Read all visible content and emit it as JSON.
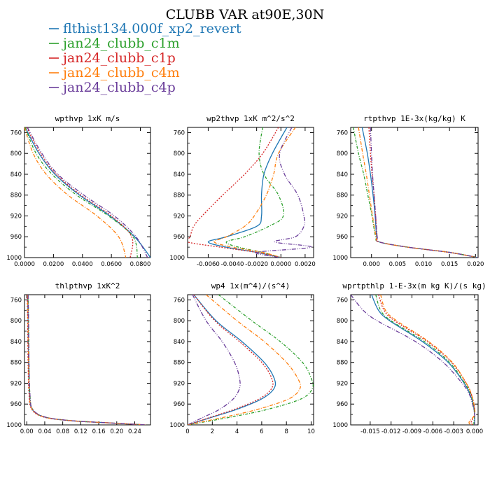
{
  "title": "CLUBB VAR at90E,30N",
  "legend": [
    {
      "name": "flthist134.000f_xp2_revert",
      "color": "#1f77b4"
    },
    {
      "name": "jan24_clubb_c1m",
      "color": "#2ca02c"
    },
    {
      "name": "jan24_clubb_c1p",
      "color": "#d62728"
    },
    {
      "name": "jan24_clubb_c4m",
      "color": "#ff7f0e"
    },
    {
      "name": "jan24_clubb_c4p",
      "color": "#6a3d9a"
    }
  ],
  "chart_data": [
    {
      "type": "line",
      "title": "wpthvp  1xK m/s",
      "xlim": [
        0,
        0.087
      ],
      "ylim": [
        750,
        1000
      ],
      "y_inverted": true,
      "xticks": [
        "0.0000",
        "0.0200",
        "0.0400",
        "0.0600",
        "0.0800"
      ],
      "xtick_values": [
        0,
        0.02,
        0.04,
        0.06,
        0.08
      ],
      "yticks": [
        "760",
        "800",
        "840",
        "880",
        "920",
        "960",
        "1000"
      ],
      "y": [
        750,
        800,
        840,
        880,
        920,
        960,
        1000
      ],
      "series": [
        {
          "values": [
            0.0005,
            0.01,
            0.021,
            0.038,
            0.059,
            0.076,
            0.087
          ]
        },
        {
          "values": [
            0.0005,
            0.008,
            0.019,
            0.036,
            0.058,
            0.075,
            0.078
          ]
        },
        {
          "values": [
            0.0015,
            0.011,
            0.022,
            0.039,
            0.06,
            0.074,
            0.073
          ]
        },
        {
          "values": [
            0,
            0.006,
            0.015,
            0.03,
            0.05,
            0.065,
            0.07
          ]
        },
        {
          "values": [
            0.002,
            0.012,
            0.023,
            0.041,
            0.062,
            0.077,
            0.085
          ]
        }
      ]
    },
    {
      "type": "line",
      "title": "wp2thvp  1xK m^2/s^2",
      "xlim": [
        -0.0077,
        0.0027
      ],
      "ylim": [
        750,
        1000
      ],
      "y_inverted": true,
      "xticks": [
        "-0.0060",
        "-0.0040",
        "-0.0020",
        "0.0000",
        "0.0020"
      ],
      "xtick_values": [
        -0.006,
        -0.004,
        -0.002,
        0,
        0.002
      ],
      "yticks": [
        "760",
        "800",
        "840",
        "880",
        "920",
        "960",
        "1000"
      ],
      "y": [
        750,
        800,
        840,
        880,
        920,
        940,
        960,
        970,
        980,
        990,
        1000
      ],
      "series": [
        {
          "values": [
            0.0005,
            -0.0007,
            -0.0014,
            -0.0016,
            -0.0016,
            -0.002,
            -0.0045,
            -0.006,
            -0.0045,
            -0.002,
            0
          ]
        },
        {
          "values": [
            -0.0015,
            -0.0018,
            -0.0014,
            -0.0002,
            0.0002,
            -0.001,
            -0.003,
            -0.0045,
            -0.0035,
            -0.0015,
            0
          ]
        },
        {
          "values": [
            -0.0002,
            -0.0015,
            -0.003,
            -0.0048,
            -0.0065,
            -0.0072,
            -0.0075,
            -0.0077,
            -0.005,
            -0.002,
            0
          ]
        },
        {
          "values": [
            0.0012,
            -0.0002,
            -0.0006,
            -0.0012,
            -0.0022,
            -0.003,
            -0.0045,
            -0.0055,
            -0.004,
            -0.0015,
            0
          ]
        },
        {
          "values": [
            0.0009,
            -0.0001,
            0.0003,
            0.0014,
            0.0019,
            0.0019,
            0.0012,
            -0.0005,
            0.0025,
            -0.002,
            0
          ]
        }
      ]
    },
    {
      "type": "line",
      "title": "rtpthvp  1E-3x(kg/kg) K",
      "xlim": [
        -0.004,
        0.0205
      ],
      "ylim": [
        750,
        1000
      ],
      "y_inverted": true,
      "xticks": [
        "0.000",
        "0.005",
        "0.010",
        "0.015",
        "0.020"
      ],
      "xtick_values": [
        0,
        0.005,
        0.01,
        0.015,
        0.02
      ],
      "yticks": [
        "760",
        "800",
        "840",
        "880",
        "920",
        "960",
        "1000"
      ],
      "y": [
        750,
        800,
        840,
        880,
        920,
        960,
        970,
        980,
        990,
        1000
      ],
      "series": [
        {
          "values": [
            -0.0018,
            -0.0008,
            -0.0002,
            0.0003,
            0.0007,
            0.001,
            0.0015,
            0.007,
            0.015,
            0.0205
          ]
        },
        {
          "values": [
            -0.0035,
            -0.0025,
            -0.0015,
            -0.0007,
            0.0001,
            0.0008,
            0.0015,
            0.007,
            0.015,
            0.0205
          ]
        },
        {
          "values": [
            -0.0005,
            -0.0002,
            0.0001,
            0.0005,
            0.0008,
            0.0011,
            0.0015,
            0.007,
            0.015,
            0.0205
          ]
        },
        {
          "values": [
            -0.0025,
            -0.0017,
            -0.001,
            -0.0004,
            0.0002,
            0.0009,
            0.0015,
            0.007,
            0.015,
            0.0205
          ]
        },
        {
          "values": [
            -0.0002,
            0,
            0.0002,
            0.0005,
            0.0008,
            0.0011,
            0.0015,
            0.007,
            0.015,
            0.0205
          ]
        }
      ]
    },
    {
      "type": "line",
      "title": "thlpthvp  1xK^2",
      "xlim": [
        -0.005,
        0.275
      ],
      "ylim": [
        750,
        1000
      ],
      "y_inverted": true,
      "xticks": [
        "0.00",
        "0.04",
        "0.08",
        "0.12",
        "0.16",
        "0.20",
        "0.24"
      ],
      "xtick_values": [
        0,
        0.04,
        0.08,
        0.12,
        0.16,
        0.2,
        0.24
      ],
      "yticks": [
        "760",
        "800",
        "840",
        "880",
        "920",
        "960",
        "1000"
      ],
      "y": [
        750,
        800,
        880,
        940,
        970,
        985,
        992,
        996,
        1000
      ],
      "series": [
        {
          "values": [
            0.002,
            0.003,
            0.004,
            0.006,
            0.012,
            0.04,
            0.1,
            0.18,
            0.265
          ]
        },
        {
          "values": [
            0.003,
            0.004,
            0.005,
            0.007,
            0.013,
            0.04,
            0.1,
            0.18,
            0.265
          ]
        },
        {
          "values": [
            0.001,
            0.002,
            0.003,
            0.005,
            0.011,
            0.038,
            0.1,
            0.18,
            0.265
          ]
        },
        {
          "values": [
            0.002,
            0.003,
            0.004,
            0.006,
            0.012,
            0.04,
            0.1,
            0.18,
            0.265
          ]
        },
        {
          "values": [
            0.003,
            0.004,
            0.005,
            0.007,
            0.013,
            0.042,
            0.1,
            0.18,
            0.265
          ]
        }
      ]
    },
    {
      "type": "line",
      "title": "wp4  1x(m^4)/(s^4)",
      "xlim": [
        0,
        10.2
      ],
      "ylim": [
        750,
        1000
      ],
      "y_inverted": true,
      "xticks": [
        "0",
        "2",
        "4",
        "6",
        "8",
        "10"
      ],
      "xtick_values": [
        0,
        2,
        4,
        6,
        8,
        10
      ],
      "yticks": [
        "760",
        "800",
        "840",
        "880",
        "920",
        "960",
        "1000"
      ],
      "y": [
        750,
        800,
        840,
        880,
        910,
        930,
        950,
        970,
        985,
        1000
      ],
      "series": [
        {
          "values": [
            0.5,
            2.3,
            4.4,
            6.2,
            7.0,
            7.0,
            6.0,
            4.0,
            2.0,
            0
          ]
        },
        {
          "values": [
            2.5,
            5.2,
            7.5,
            9.3,
            10.0,
            10.1,
            9.2,
            6.5,
            3.5,
            0
          ]
        },
        {
          "values": [
            0.5,
            2.2,
            4.2,
            6.0,
            6.8,
            6.8,
            5.8,
            3.8,
            1.9,
            0
          ]
        },
        {
          "values": [
            1.5,
            4.0,
            6.2,
            8.0,
            8.9,
            9.1,
            8.2,
            5.7,
            3.0,
            0
          ]
        },
        {
          "values": [
            0.4,
            1.5,
            2.8,
            3.8,
            4.2,
            4.2,
            3.7,
            2.6,
            1.3,
            0
          ]
        }
      ]
    },
    {
      "type": "line",
      "title": "wprtpthlp  1-E-3x(m kg K)/(s kg)",
      "xlim": [
        -0.0178,
        0.0005
      ],
      "ylim": [
        750,
        1000
      ],
      "y_inverted": true,
      "xticks": [
        "-0.015",
        "-0.012",
        "-0.009",
        "-0.006",
        "-0.003",
        "0.000"
      ],
      "xtick_values": [
        -0.015,
        -0.012,
        -0.009,
        -0.006,
        -0.003,
        0
      ],
      "yticks": [
        "760",
        "800",
        "840",
        "880",
        "920",
        "960",
        "1000"
      ],
      "y": [
        750,
        780,
        800,
        840,
        880,
        920,
        940,
        960,
        980,
        995,
        1000
      ],
      "series": [
        {
          "values": [
            -0.0148,
            -0.0138,
            -0.0122,
            -0.0075,
            -0.0038,
            -0.0015,
            -0.0007,
            -0.0002,
            0,
            0,
            -0.0001
          ]
        },
        {
          "values": [
            -0.0142,
            -0.0135,
            -0.012,
            -0.0072,
            -0.0036,
            -0.0014,
            -0.0006,
            -0.0002,
            0,
            -0.0001,
            -0.0001
          ]
        },
        {
          "values": [
            -0.0138,
            -0.013,
            -0.0115,
            -0.0068,
            -0.0033,
            -0.0012,
            -0.0005,
            -0.0001,
            0,
            -0.0005,
            -0.0002
          ]
        },
        {
          "values": [
            -0.0135,
            -0.0128,
            -0.0112,
            -0.0066,
            -0.0032,
            -0.0012,
            -0.0005,
            -0.0001,
            0,
            -0.0008,
            -0.0004
          ]
        },
        {
          "values": [
            -0.0178,
            -0.016,
            -0.014,
            -0.0085,
            -0.0045,
            -0.0018,
            -0.0008,
            -0.0003,
            0,
            0,
            0
          ]
        }
      ]
    }
  ]
}
